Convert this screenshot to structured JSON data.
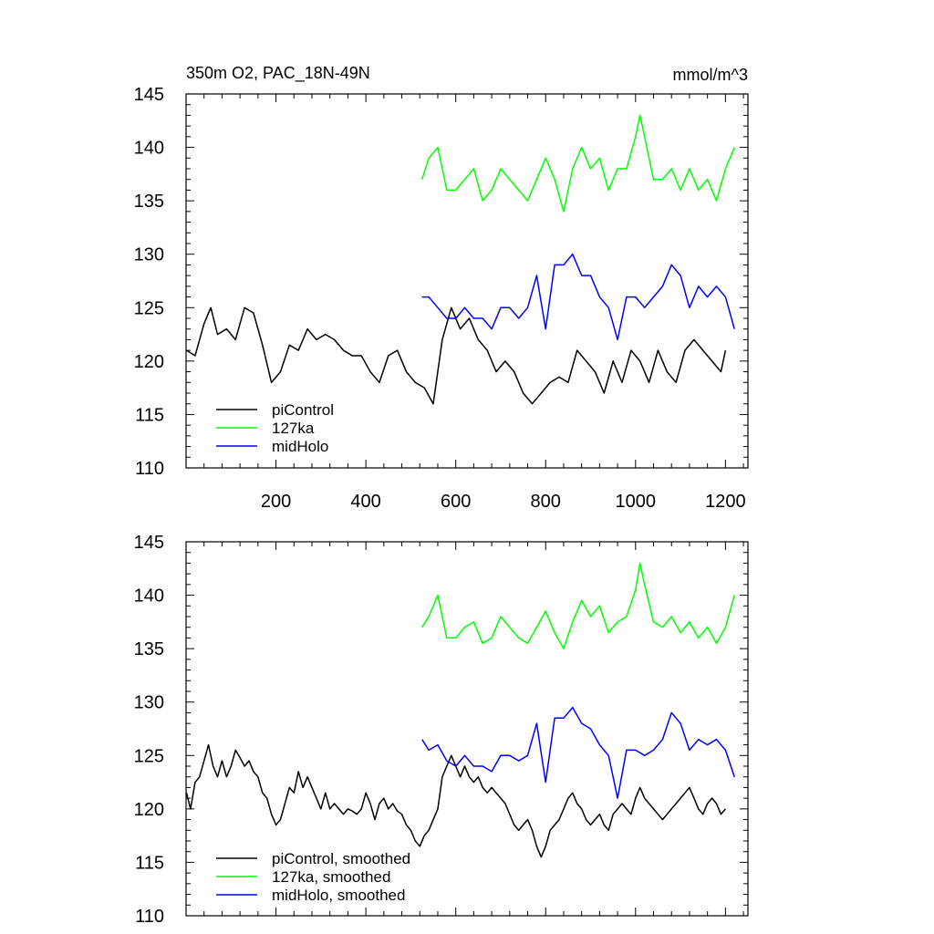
{
  "chart_data": [
    {
      "type": "line",
      "title": "350m O2, PAC_18N-49N",
      "units": "mmol/m^3",
      "xlim": [
        0,
        1250
      ],
      "ylim": [
        110,
        145
      ],
      "x_ticks": [
        200,
        400,
        600,
        800,
        1000,
        1200
      ],
      "y_ticks": [
        110,
        115,
        120,
        125,
        130,
        135,
        140,
        145
      ],
      "x_tick_labels_shown": true,
      "legend_position": "bottom-left",
      "series": [
        {
          "name": "piControl",
          "color": "#000000",
          "x": [
            1,
            20,
            40,
            55,
            70,
            90,
            110,
            130,
            150,
            170,
            190,
            210,
            230,
            250,
            270,
            290,
            310,
            330,
            350,
            370,
            390,
            410,
            430,
            450,
            470,
            490,
            510,
            530,
            550,
            570,
            590,
            610,
            630,
            650,
            670,
            690,
            710,
            730,
            750,
            770,
            790,
            810,
            830,
            850,
            870,
            890,
            910,
            930,
            950,
            970,
            990,
            1010,
            1030,
            1050,
            1070,
            1090,
            1110,
            1130,
            1150,
            1170,
            1190,
            1200
          ],
          "y": [
            121,
            120.5,
            123.5,
            125,
            122.5,
            123,
            122,
            125,
            124.5,
            121.5,
            118,
            119,
            121.5,
            121,
            123,
            122,
            122.5,
            122,
            121,
            120.5,
            120.5,
            119,
            118,
            120.5,
            121,
            119,
            118,
            117.5,
            116,
            122,
            125,
            123,
            124,
            122,
            121,
            119,
            120,
            119,
            117,
            116,
            117,
            118,
            118.5,
            118,
            121,
            120,
            119,
            117,
            120,
            118,
            121,
            120,
            118,
            121,
            119,
            118,
            121,
            122,
            121,
            120,
            119,
            121
          ]
        },
        {
          "name": "127ka",
          "color": "#00ff00",
          "x": [
            525,
            540,
            560,
            580,
            600,
            620,
            640,
            660,
            680,
            700,
            720,
            740,
            760,
            780,
            800,
            820,
            840,
            860,
            880,
            900,
            920,
            940,
            960,
            980,
            1000,
            1010,
            1020,
            1040,
            1060,
            1080,
            1100,
            1120,
            1140,
            1160,
            1180,
            1200,
            1220
          ],
          "y": [
            137,
            139,
            140,
            136,
            136,
            137,
            138,
            135,
            136,
            138,
            137,
            136,
            135,
            137,
            139,
            137,
            134,
            138,
            140,
            138,
            139,
            136,
            138,
            138,
            141,
            143,
            141,
            137,
            137,
            138,
            136,
            138,
            136,
            137,
            135,
            138,
            140
          ]
        },
        {
          "name": "midHolo",
          "color": "#0000ff",
          "x": [
            525,
            540,
            560,
            580,
            600,
            620,
            640,
            660,
            680,
            700,
            720,
            740,
            760,
            780,
            800,
            820,
            840,
            860,
            880,
            900,
            920,
            940,
            960,
            980,
            1000,
            1020,
            1040,
            1060,
            1080,
            1100,
            1120,
            1140,
            1160,
            1180,
            1200,
            1220
          ],
          "y": [
            126,
            126,
            125,
            124,
            124,
            125,
            124,
            124,
            123,
            125,
            125,
            124,
            125,
            128,
            123,
            129,
            129,
            130,
            128,
            128,
            126,
            125,
            122,
            126,
            126,
            125,
            126,
            127,
            129,
            128,
            125,
            127,
            126,
            127,
            126,
            123
          ]
        }
      ]
    },
    {
      "type": "line",
      "xlim": [
        0,
        1250
      ],
      "ylim": [
        110,
        145
      ],
      "y_ticks": [
        110,
        115,
        120,
        125,
        130,
        135,
        140,
        145
      ],
      "x_tick_labels_shown": false,
      "legend_position": "bottom-left",
      "series": [
        {
          "name": "piControl, smoothed",
          "color": "#000000",
          "x": [
            1,
            10,
            20,
            30,
            40,
            50,
            60,
            70,
            80,
            90,
            100,
            110,
            120,
            130,
            140,
            150,
            160,
            170,
            180,
            190,
            200,
            210,
            220,
            230,
            240,
            250,
            260,
            270,
            280,
            290,
            300,
            310,
            320,
            330,
            340,
            350,
            360,
            370,
            380,
            390,
            400,
            410,
            420,
            430,
            440,
            450,
            460,
            470,
            480,
            490,
            500,
            510,
            520,
            530,
            540,
            550,
            560,
            570,
            580,
            590,
            600,
            610,
            620,
            630,
            640,
            650,
            660,
            670,
            680,
            690,
            700,
            710,
            720,
            730,
            740,
            750,
            760,
            770,
            780,
            790,
            800,
            810,
            820,
            830,
            840,
            850,
            860,
            870,
            880,
            890,
            900,
            910,
            920,
            930,
            940,
            950,
            960,
            970,
            980,
            990,
            1000,
            1010,
            1020,
            1030,
            1040,
            1050,
            1060,
            1070,
            1080,
            1090,
            1100,
            1110,
            1120,
            1130,
            1140,
            1150,
            1160,
            1170,
            1180,
            1190,
            1200
          ],
          "y": [
            121.5,
            120,
            122.5,
            123,
            124.5,
            126,
            124,
            123,
            124.5,
            123,
            124,
            125.5,
            124.8,
            124,
            124.5,
            123.5,
            123,
            121.5,
            121,
            119.5,
            118.5,
            119,
            120.5,
            122,
            121.5,
            123.5,
            122,
            123,
            122,
            121,
            120,
            121.5,
            120,
            120.5,
            120,
            119.5,
            120,
            119.8,
            119.5,
            120,
            121.5,
            120.5,
            119,
            120.5,
            121,
            120,
            120.5,
            119.8,
            119.5,
            118.5,
            118,
            117,
            116.5,
            117.5,
            118,
            119,
            120,
            123,
            124,
            125,
            124,
            123,
            124,
            123,
            122.5,
            123,
            122,
            121.5,
            122,
            121.5,
            121,
            120.5,
            119.5,
            118.5,
            118,
            118.5,
            119,
            118,
            116.5,
            115.5,
            116.5,
            118,
            118.5,
            119,
            120,
            121,
            121.5,
            120.5,
            120,
            119,
            118.5,
            119,
            119.5,
            118.5,
            118,
            119.5,
            120,
            120.5,
            120,
            119.5,
            121,
            122,
            121,
            120.5,
            120,
            119.5,
            119,
            119.5,
            120,
            120.5,
            121,
            121.5,
            122,
            121,
            120,
            119.5,
            120.5,
            121,
            120.5,
            119.5,
            120
          ]
        },
        {
          "name": "127ka, smoothed",
          "color": "#00ff00",
          "x": [
            525,
            540,
            560,
            580,
            600,
            620,
            640,
            660,
            680,
            700,
            720,
            740,
            760,
            780,
            800,
            820,
            840,
            860,
            880,
            900,
            920,
            940,
            960,
            980,
            1000,
            1010,
            1020,
            1040,
            1060,
            1080,
            1100,
            1120,
            1140,
            1160,
            1180,
            1200,
            1220
          ],
          "y": [
            137,
            138,
            140,
            136,
            136,
            137,
            137.5,
            135.5,
            136,
            138,
            137,
            136,
            135.5,
            137,
            138.5,
            136.5,
            135,
            137.5,
            139.5,
            138,
            139,
            136.5,
            137.5,
            138,
            140.5,
            143,
            141,
            137.5,
            137,
            138,
            136.5,
            137.5,
            136,
            137,
            135.5,
            137,
            140
          ]
        },
        {
          "name": "midHolo, smoothed",
          "color": "#0000ff",
          "x": [
            525,
            540,
            560,
            580,
            600,
            620,
            640,
            660,
            680,
            700,
            720,
            740,
            760,
            780,
            800,
            820,
            840,
            860,
            880,
            900,
            920,
            940,
            960,
            980,
            1000,
            1020,
            1040,
            1060,
            1080,
            1100,
            1120,
            1140,
            1160,
            1180,
            1200,
            1220
          ],
          "y": [
            126.5,
            125.5,
            126,
            124.5,
            124,
            125,
            124,
            124,
            123.5,
            125,
            125,
            124.5,
            125,
            128,
            122.5,
            128.5,
            128.5,
            129.5,
            128,
            127.5,
            126,
            125,
            121,
            125.5,
            125.5,
            125,
            125.5,
            126.5,
            129,
            128,
            125.5,
            126.5,
            126,
            126.5,
            125.5,
            123
          ]
        }
      ]
    }
  ]
}
